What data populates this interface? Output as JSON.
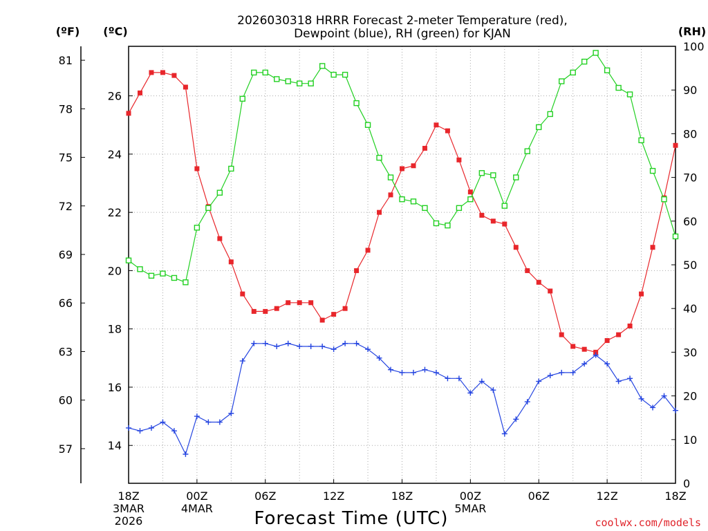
{
  "chart_data": {
    "type": "line",
    "title_line1": "2026030318 HRRR Forecast 2-meter Temperature (red),",
    "title_line2": "Dewpoint (blue), RH (green) for KJAN",
    "xlabel": "Forecast Time (UTC)",
    "credit": "coolwx.com/models",
    "units": {
      "left_f": "(ºF)",
      "left_c": "(ºC)",
      "right": "(RH)"
    },
    "x": [
      0,
      1,
      2,
      3,
      4,
      5,
      6,
      7,
      8,
      9,
      10,
      11,
      12,
      13,
      14,
      15,
      16,
      17,
      18,
      19,
      20,
      21,
      22,
      23,
      24,
      25,
      26,
      27,
      28,
      29,
      30,
      31,
      32,
      33,
      34,
      35,
      36,
      37,
      38,
      39,
      40,
      41,
      42,
      43,
      44,
      45,
      46,
      47,
      48
    ],
    "xlim": [
      0,
      48
    ],
    "x_ticks": [
      {
        "x": 0,
        "lines": [
          "18Z",
          "3MAR",
          "2026"
        ]
      },
      {
        "x": 6,
        "lines": [
          "00Z",
          "4MAR"
        ]
      },
      {
        "x": 12,
        "lines": [
          "06Z"
        ]
      },
      {
        "x": 18,
        "lines": [
          "12Z"
        ]
      },
      {
        "x": 24,
        "lines": [
          "18Z"
        ]
      },
      {
        "x": 30,
        "lines": [
          "00Z",
          "5MAR"
        ]
      },
      {
        "x": 36,
        "lines": [
          "06Z"
        ]
      },
      {
        "x": 42,
        "lines": [
          "12Z"
        ]
      },
      {
        "x": 48,
        "lines": [
          "18Z"
        ]
      }
    ],
    "y_c_lim": [
      12.7,
      27.7
    ],
    "y_c_ticks": [
      14,
      16,
      18,
      20,
      22,
      24,
      26
    ],
    "y_f_ticks": [
      57,
      60,
      63,
      66,
      69,
      72,
      75,
      78,
      81
    ],
    "y_rh_lim": [
      0,
      100
    ],
    "y_rh_ticks": [
      0,
      10,
      20,
      30,
      40,
      50,
      60,
      70,
      80,
      90,
      100
    ],
    "series": [
      {
        "name": "Temperature",
        "axis": "C",
        "color": "#e8262b",
        "marker": "filled-square",
        "values": [
          25.4,
          26.1,
          26.8,
          26.8,
          26.7,
          26.3,
          23.5,
          22.2,
          21.1,
          20.3,
          19.2,
          18.6,
          18.6,
          18.7,
          18.9,
          18.9,
          18.9,
          18.3,
          18.5,
          18.7,
          20.0,
          20.7,
          22.0,
          22.6,
          23.5,
          23.6,
          24.2,
          25.0,
          24.8,
          23.8,
          22.7,
          21.9,
          21.7,
          21.6,
          20.8,
          20.0,
          19.6,
          19.3,
          17.8,
          17.4,
          17.3,
          17.2,
          17.6,
          17.8,
          18.1,
          19.2,
          20.8,
          22.5,
          24.3
        ]
      },
      {
        "name": "Dewpoint",
        "axis": "C",
        "color": "#2444e0",
        "marker": "plus",
        "values": [
          14.6,
          14.5,
          14.6,
          14.8,
          14.5,
          13.7,
          15.0,
          14.8,
          14.8,
          15.1,
          16.9,
          17.5,
          17.5,
          17.4,
          17.5,
          17.4,
          17.4,
          17.4,
          17.3,
          17.5,
          17.5,
          17.3,
          17.0,
          16.6,
          16.5,
          16.5,
          16.6,
          16.5,
          16.3,
          16.3,
          15.8,
          16.2,
          15.9,
          14.4,
          14.9,
          15.5,
          16.2,
          16.4,
          16.5,
          16.5,
          16.8,
          17.1,
          16.8,
          16.2,
          16.3,
          15.6,
          15.3,
          15.7,
          15.2
        ]
      },
      {
        "name": "RH",
        "axis": "RH",
        "color": "#22d022",
        "marker": "open-square",
        "values": [
          51,
          49,
          47.5,
          48,
          47,
          46,
          58.5,
          63,
          66.5,
          72,
          88,
          94,
          94,
          92.5,
          92,
          91.5,
          91.5,
          95.5,
          93.5,
          93.5,
          87,
          82,
          74.5,
          70,
          65,
          64.5,
          63,
          59.5,
          59,
          63,
          65,
          71,
          70.5,
          63.5,
          70,
          76,
          81.5,
          84.5,
          92,
          94,
          96.5,
          98.5,
          94.5,
          90.5,
          89,
          78.5,
          71.5,
          65,
          56.5
        ]
      }
    ]
  }
}
